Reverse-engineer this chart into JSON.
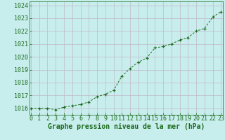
{
  "x": [
    0,
    1,
    2,
    3,
    4,
    5,
    6,
    7,
    8,
    9,
    10,
    11,
    12,
    13,
    14,
    15,
    16,
    17,
    18,
    19,
    20,
    21,
    22,
    23
  ],
  "y": [
    1016.0,
    1016.0,
    1016.0,
    1015.9,
    1016.1,
    1016.2,
    1016.3,
    1016.5,
    1016.9,
    1017.1,
    1017.4,
    1018.5,
    1019.1,
    1019.6,
    1019.9,
    1020.7,
    1020.8,
    1021.0,
    1021.3,
    1021.5,
    1022.0,
    1022.2,
    1023.1,
    1023.5
  ],
  "line_color": "#1a6b1a",
  "marker": "+",
  "bg_color": "#c8eded",
  "grid_color": "#c0b8c8",
  "xlabel": "Graphe pression niveau de la mer (hPa)",
  "xlabel_color": "#1a6b1a",
  "tick_color": "#1a6b1a",
  "ylim": [
    1015.5,
    1024.3
  ],
  "yticks": [
    1016,
    1017,
    1018,
    1019,
    1020,
    1021,
    1022,
    1023,
    1024
  ],
  "xlim": [
    -0.2,
    23.2
  ],
  "xticks": [
    0,
    1,
    2,
    3,
    4,
    5,
    6,
    7,
    8,
    9,
    10,
    11,
    12,
    13,
    14,
    15,
    16,
    17,
    18,
    19,
    20,
    21,
    22,
    23
  ],
  "tick_fontsize": 6.0,
  "xlabel_fontsize": 7.0
}
